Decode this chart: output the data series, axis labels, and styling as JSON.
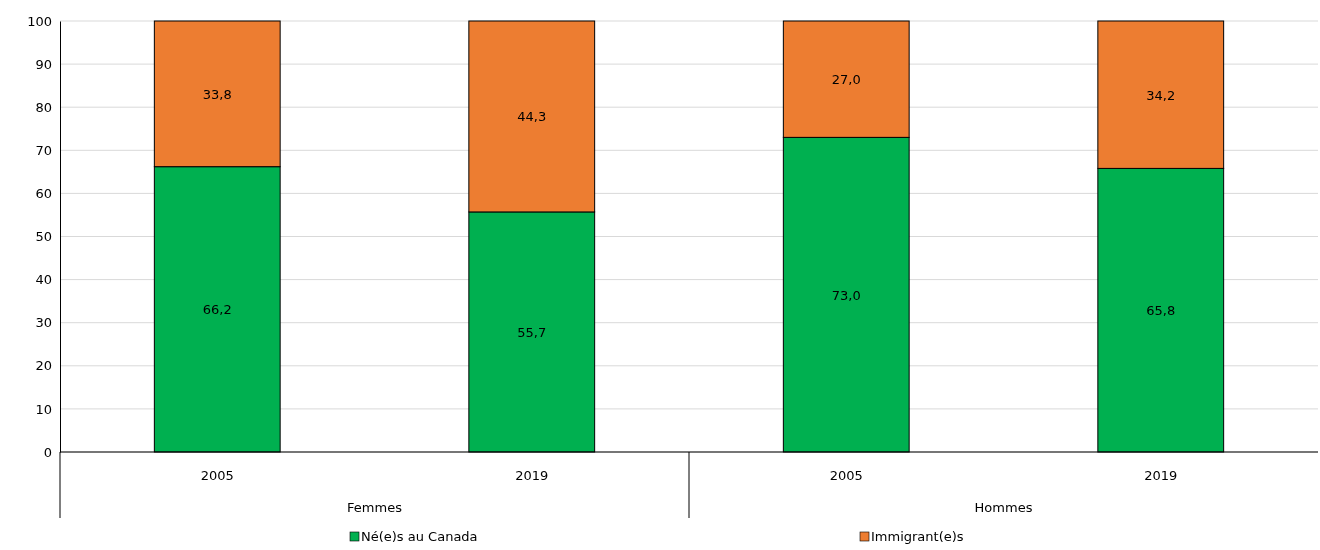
{
  "chart_data": {
    "type": "bar",
    "stacked": true,
    "categories": [
      "2005",
      "2019",
      "2005",
      "2019"
    ],
    "annotations": [
      "Femmes",
      "Hommes"
    ],
    "series": [
      {
        "name": "Né(e)s au Canada",
        "color": "#00b050",
        "values": [
          66.2,
          55.7,
          73.0,
          65.8
        ],
        "value_labels": [
          "66,2",
          "55,7",
          "73,0",
          "65,8"
        ]
      },
      {
        "name": "Immigrant(e)s",
        "color": "#ed7d31",
        "values": [
          33.8,
          44.3,
          27.0,
          34.2
        ],
        "value_labels": [
          "33,8",
          "44,3",
          "27,0",
          "34,2"
        ]
      }
    ],
    "ylim": [
      0,
      100
    ],
    "yticks": [
      0,
      10,
      20,
      30,
      40,
      50,
      60,
      70,
      80,
      90,
      100
    ],
    "grid": "y",
    "legend": "bottom"
  }
}
